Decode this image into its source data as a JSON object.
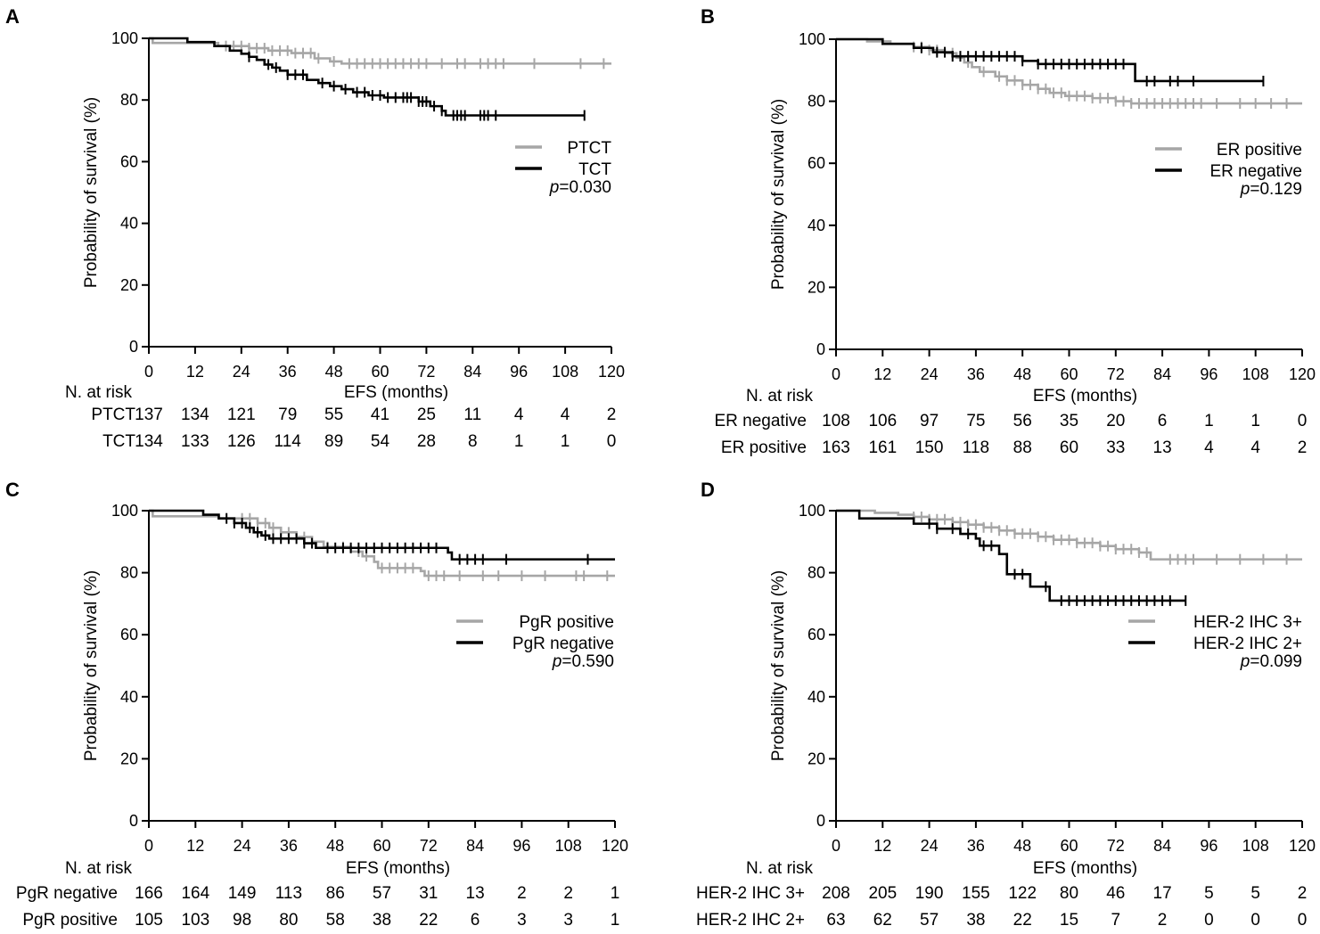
{
  "chart_data": [
    {
      "type": "line",
      "panel": "A",
      "ylabel": "Probability of survival (%)",
      "xlabel": "EFS (months)",
      "xlim": [
        0,
        120
      ],
      "ylim": [
        0,
        100
      ],
      "xticks": [
        0,
        12,
        24,
        36,
        48,
        60,
        72,
        84,
        96,
        108,
        120
      ],
      "yticks": [
        0,
        20,
        40,
        60,
        80,
        100
      ],
      "legend": "right",
      "p_prefix": "p",
      "p_value": "=0.030",
      "series": [
        {
          "name": "PTCT",
          "color": "#a6a6a6",
          "steps": [
            [
              0,
              100
            ],
            [
              1,
              98.5
            ],
            [
              12,
              98.5
            ],
            [
              18,
              97.5
            ],
            [
              26,
              96.8
            ],
            [
              31,
              96.0
            ],
            [
              37,
              95.2
            ],
            [
              43,
              93.5
            ],
            [
              47,
              92.5
            ],
            [
              50,
              91.8
            ],
            [
              120,
              91.8
            ]
          ],
          "end": 120,
          "censor": [
            20,
            22,
            24,
            26,
            28,
            30,
            32,
            34,
            36,
            38,
            40,
            42,
            44,
            48,
            52,
            54,
            56,
            58,
            60,
            62,
            64,
            66,
            68,
            70,
            72,
            76,
            80,
            82,
            86,
            88,
            90,
            92,
            100,
            112,
            118
          ]
        },
        {
          "name": "TCT",
          "color": "#000000",
          "steps": [
            [
              0,
              100
            ],
            [
              10,
              98.8
            ],
            [
              17,
              97.5
            ],
            [
              21,
              96
            ],
            [
              24,
              95
            ],
            [
              26,
              94
            ],
            [
              28,
              93
            ],
            [
              30,
              91.5
            ],
            [
              32,
              90.5
            ],
            [
              34,
              89.5
            ],
            [
              36,
              88.2
            ],
            [
              41,
              86.5
            ],
            [
              44,
              85.5
            ],
            [
              47,
              84.5
            ],
            [
              50,
              83.5
            ],
            [
              53,
              82.5
            ],
            [
              57,
              81.5
            ],
            [
              61,
              80.8
            ],
            [
              70,
              79.5
            ],
            [
              73,
              78
            ],
            [
              76,
              76.5
            ],
            [
              77,
              75.0
            ],
            [
              113,
              75.0
            ]
          ],
          "end": 113,
          "censor": [
            26,
            31,
            33,
            36,
            38,
            40,
            45,
            48,
            51,
            54,
            56,
            58,
            60,
            62,
            64,
            66,
            67,
            68,
            70,
            71,
            72,
            74,
            76,
            79,
            80,
            81,
            82,
            86,
            87,
            88,
            90,
            113
          ]
        }
      ],
      "at_risk_label": "N. at risk",
      "at_risk": [
        {
          "label": "PTCT",
          "values": [
            "137",
            "134",
            "121",
            "79",
            "55",
            "41",
            "25",
            "11",
            "4",
            "4",
            "2"
          ]
        },
        {
          "label": "TCT",
          "values": [
            "134",
            "133",
            "126",
            "114",
            "89",
            "54",
            "28",
            "8",
            "1",
            "1",
            "0"
          ]
        }
      ]
    },
    {
      "type": "line",
      "panel": "B",
      "ylabel": "Probability of survival (%)",
      "xlabel": "EFS (months)",
      "xlim": [
        0,
        120
      ],
      "ylim": [
        0,
        100
      ],
      "xticks": [
        0,
        12,
        24,
        36,
        48,
        60,
        72,
        84,
        96,
        108,
        120
      ],
      "yticks": [
        0,
        20,
        40,
        60,
        80,
        100
      ],
      "legend": "right",
      "p_prefix": "p",
      "p_value": "=0.129",
      "series": [
        {
          "name": "ER positive",
          "color": "#a6a6a6",
          "steps": [
            [
              0,
              100
            ],
            [
              8,
              99.3
            ],
            [
              14,
              98.5
            ],
            [
              20,
              97.5
            ],
            [
              24,
              96.5
            ],
            [
              28,
              95.5
            ],
            [
              31,
              94
            ],
            [
              33,
              92.5
            ],
            [
              35,
              91
            ],
            [
              37,
              89.5
            ],
            [
              41,
              88
            ],
            [
              44,
              86.7
            ],
            [
              48,
              85.3
            ],
            [
              52,
              84
            ],
            [
              55,
              82.7
            ],
            [
              59,
              81.7
            ],
            [
              66,
              81
            ],
            [
              72,
              80
            ],
            [
              76,
              79.3
            ],
            [
              120,
              79.3
            ]
          ],
          "end": 120,
          "censor": [
            20,
            22,
            24,
            26,
            30,
            34,
            38,
            42,
            44,
            46,
            48,
            50,
            52,
            54,
            56,
            58,
            60,
            62,
            64,
            66,
            68,
            70,
            72,
            74,
            76,
            78,
            80,
            82,
            84,
            86,
            88,
            90,
            92,
            94,
            98,
            104,
            108,
            112,
            116
          ]
        },
        {
          "name": "ER negative",
          "color": "#000000",
          "steps": [
            [
              0,
              100
            ],
            [
              12,
              98.5
            ],
            [
              20,
              97.2
            ],
            [
              25,
              95.8
            ],
            [
              30,
              94.5
            ],
            [
              48,
              93
            ],
            [
              52,
              92
            ],
            [
              77,
              92
            ],
            [
              77,
              86.5
            ],
            [
              110,
              86.5
            ]
          ],
          "end": 110,
          "censor": [
            22,
            26,
            28,
            30,
            32,
            34,
            36,
            38,
            40,
            42,
            44,
            46,
            48,
            52,
            54,
            56,
            58,
            60,
            62,
            64,
            66,
            68,
            70,
            72,
            74,
            80,
            82,
            86,
            88,
            92,
            110
          ]
        }
      ],
      "at_risk_label": "N. at risk",
      "at_risk": [
        {
          "label": "ER negative",
          "values": [
            "108",
            "106",
            "97",
            "75",
            "56",
            "35",
            "20",
            "6",
            "1",
            "1",
            "0"
          ]
        },
        {
          "label": "ER positive",
          "values": [
            "163",
            "161",
            "150",
            "118",
            "88",
            "60",
            "33",
            "13",
            "4",
            "4",
            "2"
          ]
        }
      ]
    },
    {
      "type": "line",
      "panel": "C",
      "ylabel": "Probability of survival (%)",
      "xlabel": "EFS (months)",
      "xlim": [
        0,
        120
      ],
      "ylim": [
        0,
        100
      ],
      "xticks": [
        0,
        12,
        24,
        36,
        48,
        60,
        72,
        84,
        96,
        108,
        120
      ],
      "yticks": [
        0,
        20,
        40,
        60,
        80,
        100
      ],
      "legend": "right",
      "p_prefix": "p",
      "p_value": "=0.590",
      "series": [
        {
          "name": "PgR positive",
          "color": "#a6a6a6",
          "steps": [
            [
              0,
              100
            ],
            [
              1,
              98.2
            ],
            [
              12,
              98.2
            ],
            [
              18,
              97.5
            ],
            [
              28,
              96
            ],
            [
              31,
              94.5
            ],
            [
              34,
              93
            ],
            [
              38,
              91.5
            ],
            [
              42,
              90
            ],
            [
              45,
              88.3
            ],
            [
              52,
              86.8
            ],
            [
              55,
              85.3
            ],
            [
              58,
              83.5
            ],
            [
              59,
              81.5
            ],
            [
              70,
              80.5
            ],
            [
              71,
              79
            ],
            [
              120,
              79
            ]
          ],
          "end": 120,
          "censor": [
            24,
            26,
            28,
            30,
            32,
            34,
            36,
            40,
            42,
            46,
            50,
            54,
            56,
            60,
            62,
            64,
            66,
            68,
            72,
            74,
            76,
            80,
            86,
            90,
            96,
            102,
            110,
            112,
            118
          ]
        },
        {
          "name": "PgR negative",
          "color": "#000000",
          "steps": [
            [
              0,
              100
            ],
            [
              14,
              98.7
            ],
            [
              18,
              97.5
            ],
            [
              22,
              96
            ],
            [
              25,
              94.5
            ],
            [
              27,
              93
            ],
            [
              29,
              92
            ],
            [
              31,
              91
            ],
            [
              40,
              89.5
            ],
            [
              43,
              88
            ],
            [
              65,
              88
            ],
            [
              77,
              86.5
            ],
            [
              78,
              84.3
            ],
            [
              120,
              84.3
            ]
          ],
          "end": 120,
          "censor": [
            20,
            22,
            24,
            26,
            28,
            30,
            32,
            34,
            36,
            38,
            40,
            42,
            46,
            48,
            50,
            52,
            54,
            56,
            58,
            60,
            62,
            64,
            66,
            68,
            70,
            72,
            74,
            80,
            82,
            84,
            86,
            92,
            113
          ]
        }
      ],
      "at_risk_label": "N. at risk",
      "at_risk": [
        {
          "label": "PgR negative",
          "values": [
            "166",
            "164",
            "149",
            "113",
            "86",
            "57",
            "31",
            "13",
            "2",
            "2",
            "1"
          ]
        },
        {
          "label": "PgR positive",
          "values": [
            "105",
            "103",
            "98",
            "80",
            "58",
            "38",
            "22",
            "6",
            "3",
            "3",
            "1"
          ]
        }
      ]
    },
    {
      "type": "line",
      "panel": "D",
      "ylabel": "Probability of survival (%)",
      "xlabel": "EFS (months)",
      "xlim": [
        0,
        120
      ],
      "ylim": [
        0,
        100
      ],
      "xticks": [
        0,
        12,
        24,
        36,
        48,
        60,
        72,
        84,
        96,
        108,
        120
      ],
      "yticks": [
        0,
        20,
        40,
        60,
        80,
        100
      ],
      "legend": "right",
      "p_prefix": "p",
      "p_value": "=0.099",
      "series": [
        {
          "name": "HER-2 IHC 3+",
          "color": "#a6a6a6",
          "steps": [
            [
              0,
              100
            ],
            [
              10,
              99.3
            ],
            [
              16,
              98.7
            ],
            [
              20,
              98
            ],
            [
              24,
              97.2
            ],
            [
              30,
              96.3
            ],
            [
              34,
              95.5
            ],
            [
              38,
              94.6
            ],
            [
              42,
              93.6
            ],
            [
              46,
              92.6
            ],
            [
              52,
              91.6
            ],
            [
              56,
              90.6
            ],
            [
              62,
              89.6
            ],
            [
              68,
              88.6
            ],
            [
              72,
              87.6
            ],
            [
              78,
              86.5
            ],
            [
              81,
              84.3
            ],
            [
              120,
              84.3
            ]
          ],
          "end": 120,
          "censor": [
            20,
            22,
            24,
            26,
            28,
            30,
            32,
            34,
            36,
            38,
            40,
            42,
            44,
            46,
            48,
            50,
            52,
            54,
            56,
            58,
            60,
            62,
            64,
            66,
            68,
            70,
            72,
            74,
            76,
            78,
            80,
            86,
            88,
            90,
            92,
            98,
            104,
            110,
            116
          ]
        },
        {
          "name": "HER-2 IHC 2+",
          "color": "#000000",
          "steps": [
            [
              0,
              100
            ],
            [
              6,
              97.5
            ],
            [
              20,
              95.8
            ],
            [
              26,
              94.2
            ],
            [
              32,
              92.5
            ],
            [
              36,
              91
            ],
            [
              37,
              88.7
            ],
            [
              42,
              86
            ],
            [
              44,
              79.5
            ],
            [
              50,
              75.5
            ],
            [
              55,
              71
            ],
            [
              90,
              71
            ]
          ],
          "end": 90,
          "censor": [
            24,
            26,
            30,
            34,
            38,
            40,
            46,
            48,
            54,
            58,
            60,
            62,
            64,
            66,
            68,
            70,
            72,
            74,
            76,
            78,
            80,
            82,
            84,
            86,
            90
          ]
        }
      ],
      "at_risk_label": "N. at risk",
      "at_risk": [
        {
          "label": "HER-2 IHC 3+",
          "values": [
            "208",
            "205",
            "190",
            "155",
            "122",
            "80",
            "46",
            "17",
            "5",
            "5",
            "2"
          ]
        },
        {
          "label": "HER-2 IHC 2+",
          "values": [
            "63",
            "62",
            "57",
            "38",
            "22",
            "15",
            "7",
            "2",
            "0",
            "0",
            "0"
          ]
        }
      ]
    }
  ]
}
